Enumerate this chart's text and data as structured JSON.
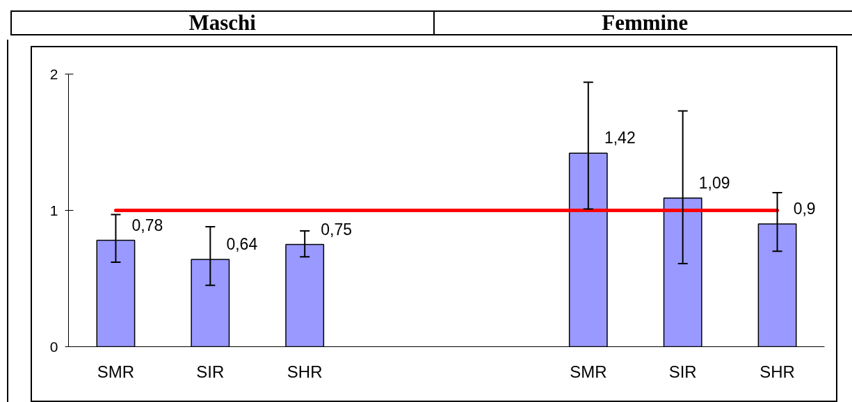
{
  "chart_data": {
    "type": "bar",
    "annotations": [
      "Maschi",
      "Femmine"
    ],
    "categories": [
      "SMR",
      "SIR",
      "SHR",
      null,
      null,
      "SMR",
      "SIR",
      "SHR"
    ],
    "values": [
      0.78,
      0.64,
      0.75,
      null,
      null,
      1.42,
      1.09,
      0.9
    ],
    "color": "#9999ff",
    "errors": [
      [
        0.62,
        0.97
      ],
      [
        0.45,
        0.88
      ],
      [
        0.66,
        0.85
      ],
      null,
      null,
      [
        1.01,
        1.94
      ],
      [
        0.61,
        1.73
      ],
      [
        0.7,
        1.13
      ]
    ],
    "value_labels": [
      "0,78",
      "0,64",
      "0,75",
      null,
      null,
      "1,42",
      "1,09",
      "0,9"
    ],
    "ref_lines": [
      {
        "axis": "y",
        "value": 1,
        "color": "#ff0000"
      }
    ],
    "ylim": [
      0,
      2
    ],
    "yticks": [
      0,
      1,
      2
    ]
  }
}
